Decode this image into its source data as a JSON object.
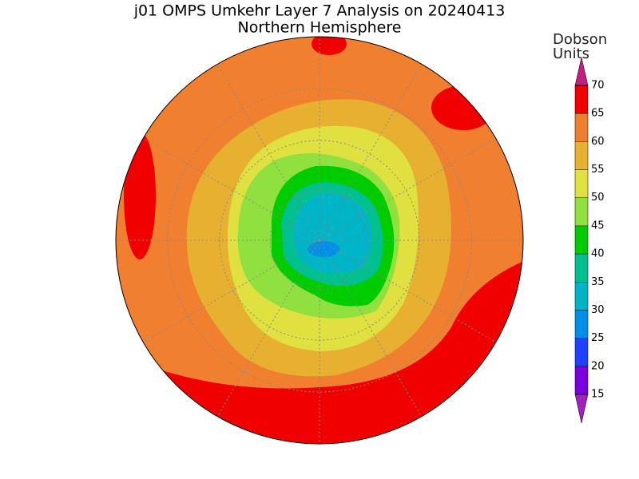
{
  "title": "j01 OMPS Umkehr Layer 7 Analysis on 20240413",
  "subtitle": "Northern Hemisphere",
  "colorbar": {
    "label_lines": [
      "Dobson",
      "Units"
    ],
    "ticks": [
      15,
      20,
      25,
      30,
      35,
      40,
      45,
      50,
      55,
      60,
      65,
      70
    ],
    "colors": [
      "#7a00e0",
      "#2040ff",
      "#0090e8",
      "#00b4c8",
      "#00c090",
      "#00cc00",
      "#90e040",
      "#e0e040",
      "#e8b030",
      "#f08030",
      "#f00000"
    ],
    "under_color": "#a020c0",
    "over_color": "#c0207f"
  }
}
